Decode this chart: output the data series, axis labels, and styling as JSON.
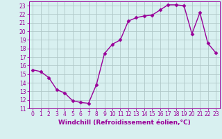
{
  "x": [
    0,
    1,
    2,
    3,
    4,
    5,
    6,
    7,
    8,
    9,
    10,
    11,
    12,
    13,
    14,
    15,
    16,
    17,
    18,
    19,
    20,
    21,
    22,
    23
  ],
  "y": [
    15.5,
    15.3,
    14.6,
    13.2,
    12.8,
    11.9,
    11.7,
    11.6,
    13.8,
    17.4,
    18.5,
    19.0,
    21.2,
    21.6,
    21.8,
    21.9,
    22.5,
    23.1,
    23.1,
    23.0,
    19.7,
    22.2,
    18.6,
    17.5
  ],
  "line_color": "#990099",
  "marker": "D",
  "markersize": 2.5,
  "linewidth": 1.0,
  "bg_color": "#d8f0f0",
  "grid_color": "#b0c8c8",
  "xlabel": "Windchill (Refroidissement éolien,°C)",
  "xlabel_color": "#990099",
  "tick_color": "#990099",
  "xlim": [
    -0.5,
    23.5
  ],
  "ylim": [
    11,
    23.5
  ],
  "yticks": [
    11,
    12,
    13,
    14,
    15,
    16,
    17,
    18,
    19,
    20,
    21,
    22,
    23
  ],
  "xticks": [
    0,
    1,
    2,
    3,
    4,
    5,
    6,
    7,
    8,
    9,
    10,
    11,
    12,
    13,
    14,
    15,
    16,
    17,
    18,
    19,
    20,
    21,
    22,
    23
  ],
  "label_fontsize": 6.5,
  "tick_fontsize": 5.5
}
